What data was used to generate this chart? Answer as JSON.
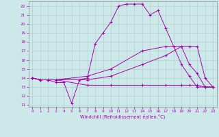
{
  "xlabel": "Windchill (Refroidissement éolien,°C)",
  "bg_color": "#cce8e8",
  "line_color": "#aa00aa",
  "xlim": [
    -0.5,
    23.5
  ],
  "ylim": [
    10.8,
    22.5
  ],
  "yticks": [
    11,
    12,
    13,
    14,
    15,
    16,
    17,
    18,
    19,
    20,
    21,
    22
  ],
  "xticks": [
    0,
    1,
    2,
    3,
    4,
    5,
    6,
    7,
    8,
    9,
    10,
    11,
    12,
    13,
    14,
    15,
    16,
    17,
    18,
    19,
    20,
    21,
    22,
    23
  ],
  "lines": [
    {
      "x": [
        0,
        1,
        2,
        3,
        4,
        5,
        6,
        7,
        8,
        9,
        10,
        11,
        12,
        13,
        14,
        15,
        16,
        17,
        18,
        19,
        20,
        21,
        22,
        23
      ],
      "y": [
        14.0,
        13.8,
        13.8,
        13.5,
        13.5,
        11.2,
        13.8,
        14.0,
        17.8,
        19.0,
        20.2,
        22.0,
        22.2,
        22.2,
        22.2,
        21.0,
        21.5,
        19.5,
        17.5,
        15.5,
        14.2,
        13.0,
        13.0,
        13.0
      ]
    },
    {
      "x": [
        0,
        1,
        2,
        3,
        7,
        10,
        14,
        17,
        19,
        20,
        21,
        22,
        23
      ],
      "y": [
        14.0,
        13.8,
        13.8,
        13.8,
        14.2,
        15.0,
        17.0,
        17.5,
        17.5,
        17.5,
        17.5,
        14.0,
        13.0
      ]
    },
    {
      "x": [
        0,
        1,
        2,
        3,
        7,
        10,
        14,
        17,
        19,
        20,
        21,
        22,
        23
      ],
      "y": [
        14.0,
        13.8,
        13.8,
        13.8,
        13.8,
        14.2,
        15.5,
        16.5,
        17.5,
        15.5,
        14.5,
        13.0,
        13.0
      ]
    },
    {
      "x": [
        0,
        1,
        2,
        3,
        7,
        10,
        14,
        17,
        19,
        20,
        21,
        22,
        23
      ],
      "y": [
        14.0,
        13.8,
        13.8,
        13.8,
        13.2,
        13.2,
        13.2,
        13.2,
        13.2,
        13.2,
        13.2,
        13.0,
        13.0
      ]
    }
  ]
}
